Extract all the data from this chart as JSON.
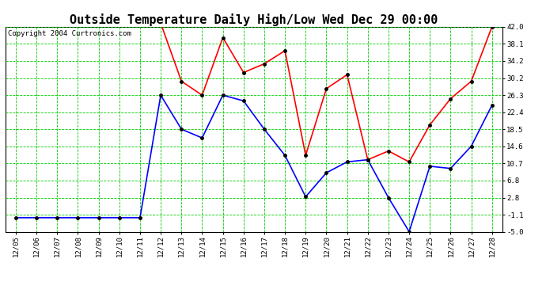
{
  "title": "Outside Temperature Daily High/Low Wed Dec 29 00:00",
  "copyright": "Copyright 2004 Curtronics.com",
  "dates": [
    "12/05",
    "12/06",
    "12/07",
    "12/08",
    "12/09",
    "12/10",
    "12/11",
    "12/12",
    "12/13",
    "12/14",
    "12/15",
    "12/16",
    "12/17",
    "12/18",
    "12/19",
    "12/20",
    "12/21",
    "12/22",
    "12/23",
    "12/24",
    "12/25",
    "12/26",
    "12/27",
    "12/28"
  ],
  "high_values": [
    null,
    null,
    null,
    null,
    null,
    null,
    null,
    42.8,
    29.5,
    26.3,
    39.5,
    31.5,
    33.5,
    36.5,
    12.5,
    27.8,
    31.0,
    11.5,
    13.5,
    11.0,
    19.5,
    25.5,
    29.5,
    42.0
  ],
  "low_values": [
    -1.8,
    -1.8,
    -1.8,
    -1.8,
    -1.8,
    -1.8,
    -1.8,
    26.3,
    18.5,
    16.5,
    26.3,
    25.0,
    18.5,
    12.5,
    3.0,
    8.5,
    11.0,
    11.5,
    2.8,
    -5.0,
    10.0,
    9.5,
    14.6,
    24.0
  ],
  "high_color": "#FF0000",
  "low_color": "#0000FF",
  "bg_color": "#FFFFFF",
  "grid_color": "#00CC00",
  "marker_color": "#000000",
  "ylim": [
    -5.0,
    42.0
  ],
  "yticks": [
    -5.0,
    -1.1,
    2.8,
    6.8,
    10.7,
    14.6,
    18.5,
    22.4,
    26.3,
    30.2,
    34.2,
    38.1,
    42.0
  ],
  "title_fontsize": 11,
  "axis_fontsize": 6.5,
  "copyright_fontsize": 6.5,
  "fig_width": 6.9,
  "fig_height": 3.75,
  "dpi": 100
}
